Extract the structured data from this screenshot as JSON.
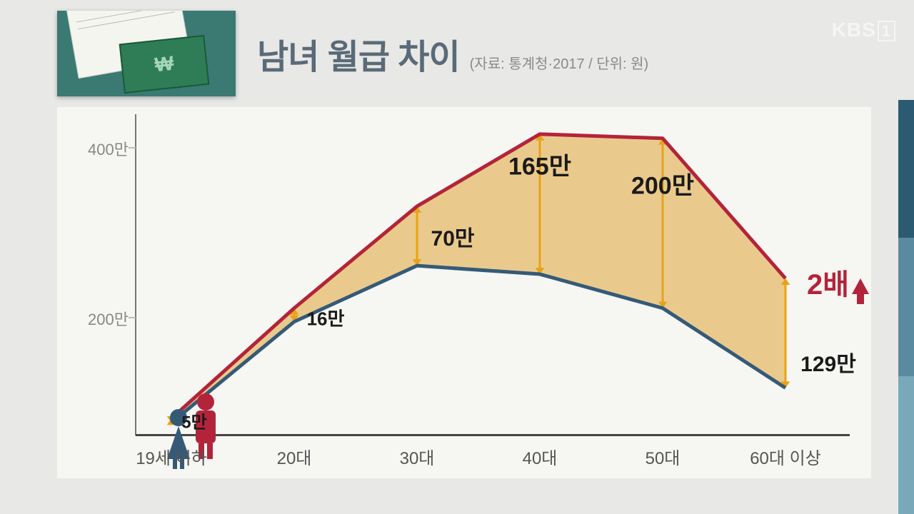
{
  "header": {
    "title": "남녀 월급 차이",
    "subtitle": "(자료: 통계청·2017 / 단위: 원)",
    "watermark_text": "KBS",
    "watermark_box": "1"
  },
  "chart": {
    "type": "line",
    "background_color": "#f6f6f2",
    "page_background": "#e8e8e6",
    "xlabels": [
      "19세 이하",
      "20대",
      "30대",
      "40대",
      "50대",
      "60대 이상"
    ],
    "yticks": [
      {
        "value": 200,
        "label": "200만"
      },
      {
        "value": 400,
        "label": "400만"
      }
    ],
    "ylim": [
      60,
      430
    ],
    "series": {
      "male": {
        "color": "#b3243a",
        "width": 5,
        "values": [
          80,
          210,
          330,
          415,
          410,
          245
        ]
      },
      "female": {
        "color": "#355a78",
        "width": 5,
        "values": [
          75,
          194,
          260,
          250,
          210,
          116
        ]
      }
    },
    "fill_between_color": "#e7c27a",
    "fill_between_opacity": 0.85,
    "gap_arrows": {
      "color": "#e8a215",
      "head_size": 9,
      "labels": [
        {
          "idx": 0,
          "text": "5만",
          "dx": 32,
          "dy": 0,
          "fontsize": 24
        },
        {
          "idx": 1,
          "text": "16만",
          "dx": 44,
          "dy": 4,
          "fontsize": 26
        },
        {
          "idx": 2,
          "text": "70만",
          "dx": 50,
          "dy": 0,
          "fontsize": 30
        },
        {
          "idx": 3,
          "text": "165만",
          "dx": 0,
          "dy": -56,
          "fontsize": 34
        },
        {
          "idx": 4,
          "text": "200만",
          "dx": 0,
          "dy": -56,
          "fontsize": 34
        },
        {
          "idx": 5,
          "text": "129만",
          "dx": 60,
          "dy": 40,
          "fontsize": 30
        }
      ]
    },
    "callout": {
      "text": "2배",
      "color": "#b3243a"
    },
    "axis_color": "#444",
    "tick_fontsize": 24,
    "tick_color": "#555",
    "ytick_color": "#888",
    "legend_icons": {
      "male_color": "#b3243a",
      "female_color": "#355a78"
    }
  }
}
